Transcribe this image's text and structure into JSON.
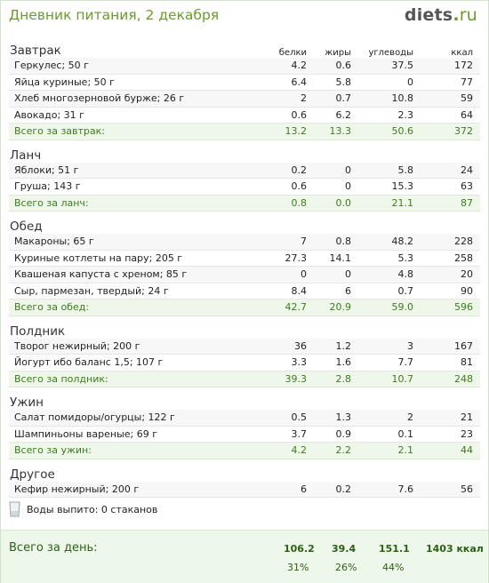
{
  "page": {
    "title": "Дневник питания, 2 декабря",
    "logo_main": "diets",
    "logo_dot": ".",
    "logo_tld": "ru"
  },
  "columns": {
    "protein": "белки",
    "fat": "жиры",
    "carbs": "углеводы",
    "kcal": "ккал"
  },
  "meals": [
    {
      "title": "Завтрак",
      "items": [
        {
          "name": "Геркулес; 50 г",
          "protein": "4.2",
          "fat": "0.6",
          "carbs": "37.5",
          "kcal": "172"
        },
        {
          "name": "Яйца куриные; 50 г",
          "protein": "6.4",
          "fat": "5.8",
          "carbs": "0",
          "kcal": "77"
        },
        {
          "name": "Хлеб многозерновой бурже; 26 г",
          "protein": "2",
          "fat": "0.7",
          "carbs": "10.8",
          "kcal": "59"
        },
        {
          "name": "Авокадо; 31 г",
          "protein": "0.6",
          "fat": "6.2",
          "carbs": "2.3",
          "kcal": "64"
        }
      ],
      "total": {
        "label": "Всего за завтрак:",
        "protein": "13.2",
        "fat": "13.3",
        "carbs": "50.6",
        "kcal": "372"
      }
    },
    {
      "title": "Ланч",
      "items": [
        {
          "name": "Яблоки; 51 г",
          "protein": "0.2",
          "fat": "0",
          "carbs": "5.8",
          "kcal": "24"
        },
        {
          "name": "Груша; 143 г",
          "protein": "0.6",
          "fat": "0",
          "carbs": "15.3",
          "kcal": "63"
        }
      ],
      "total": {
        "label": "Всего за ланч:",
        "protein": "0.8",
        "fat": "0.0",
        "carbs": "21.1",
        "kcal": "87"
      }
    },
    {
      "title": "Обед",
      "items": [
        {
          "name": "Макароны; 65 г",
          "protein": "7",
          "fat": "0.8",
          "carbs": "48.2",
          "kcal": "228"
        },
        {
          "name": "Куриные котлеты на пару; 205 г",
          "protein": "27.3",
          "fat": "14.1",
          "carbs": "5.3",
          "kcal": "258"
        },
        {
          "name": "Квашеная капуста с хреном; 85 г",
          "protein": "0",
          "fat": "0",
          "carbs": "4.8",
          "kcal": "20"
        },
        {
          "name": "Сыр, пармезан, твердый; 24 г",
          "protein": "8.4",
          "fat": "6",
          "carbs": "0.7",
          "kcal": "90"
        }
      ],
      "total": {
        "label": "Всего за обед:",
        "protein": "42.7",
        "fat": "20.9",
        "carbs": "59.0",
        "kcal": "596"
      }
    },
    {
      "title": "Полдник",
      "items": [
        {
          "name": "Творог нежирный; 200 г",
          "protein": "36",
          "fat": "1.2",
          "carbs": "3",
          "kcal": "167"
        },
        {
          "name": "Йогурт ибо баланс 1,5; 107 г",
          "protein": "3.3",
          "fat": "1.6",
          "carbs": "7.7",
          "kcal": "81"
        }
      ],
      "total": {
        "label": "Всего за полдник:",
        "protein": "39.3",
        "fat": "2.8",
        "carbs": "10.7",
        "kcal": "248"
      }
    },
    {
      "title": "Ужин",
      "items": [
        {
          "name": "Салат помидоры/огурцы; 122 г",
          "protein": "0.5",
          "fat": "1.3",
          "carbs": "2",
          "kcal": "21"
        },
        {
          "name": "Шампиньоны вареные; 69 г",
          "protein": "3.7",
          "fat": "0.9",
          "carbs": "0.1",
          "kcal": "23"
        }
      ],
      "total": {
        "label": "Всего за ужин:",
        "protein": "4.2",
        "fat": "2.2",
        "carbs": "2.1",
        "kcal": "44"
      }
    },
    {
      "title": "Другое",
      "items": [
        {
          "name": "Кефир нежирный; 200 г",
          "protein": "6",
          "fat": "0.2",
          "carbs": "7.6",
          "kcal": "56"
        }
      ]
    }
  ],
  "water": {
    "text": "Воды выпито: 0 стаканов",
    "icon": "glass-icon"
  },
  "day": {
    "label": "Всего за день:",
    "protein": "106.2",
    "fat": "39.4",
    "carbs": "151.1",
    "kcal": "1403 ккал",
    "protein_pct": "31%",
    "fat_pct": "26%",
    "carbs_pct": "44%"
  },
  "colors": {
    "accent": "#6b9b2c",
    "total_bg": "#eff7ea",
    "total_text": "#3c7d1c",
    "day_bg": "#eef8ea"
  }
}
